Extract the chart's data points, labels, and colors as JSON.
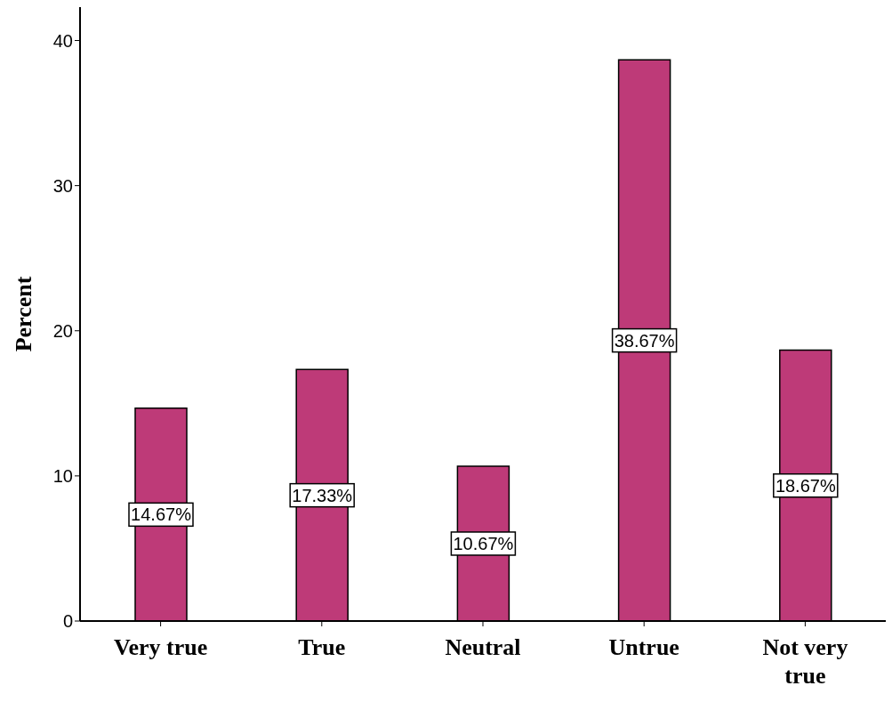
{
  "chart_data": {
    "type": "bar",
    "ylabel": "Percent",
    "categories": [
      "Very true",
      "True",
      "Neutral",
      "Untrue",
      "Not very true"
    ],
    "values": [
      14.67,
      17.33,
      10.67,
      38.67,
      18.67
    ],
    "value_labels": [
      "14.67%",
      "17.33%",
      "10.67%",
      "38.67%",
      "18.67%"
    ],
    "color": "#be3a78",
    "ylim": [
      0,
      42.3
    ],
    "yticks": [
      0,
      10,
      20,
      30,
      40
    ],
    "grid": false,
    "legend": false
  }
}
